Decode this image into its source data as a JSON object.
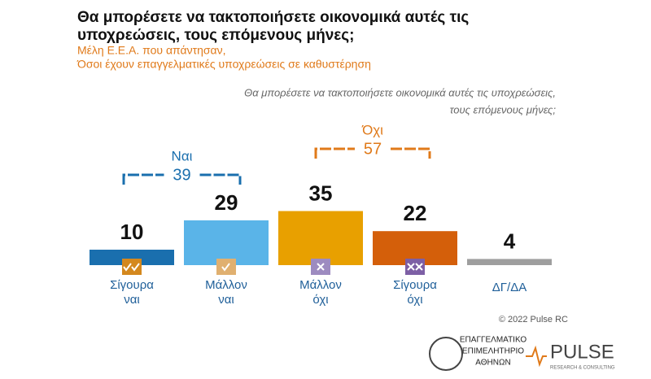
{
  "chart_data": {
    "type": "bar",
    "title": [
      "Θα μπορέσετε να τακτοποιήσετε οικονομικά αυτές τις",
      "υποχρεώσεις, τους επόμενους μήνες;"
    ],
    "subtitle": [
      "Μέλη Ε.Ε.Α. που απάντησαν,",
      "Όσοι έχουν επαγγελματικές υποχρεώσεις σε καθυστέρηση"
    ],
    "annotation": [
      "Θα μπορέσετε να τακτοποιήσετε οικονομικά αυτές τις υποχρεώσεις,",
      "τους επόμενους μήνες;"
    ],
    "categories": [
      "Σίγουρα ναι",
      "Μάλλον ναι",
      "Μάλλον όχι",
      "Σίγουρα όχι",
      "ΔΓ/ΔΑ"
    ],
    "values": [
      10,
      29,
      35,
      22,
      4
    ],
    "colors": [
      "#1a6fae",
      "#5ab4e8",
      "#e8a000",
      "#d45f0a",
      "#9e9e9e"
    ],
    "ylim": [
      0,
      40
    ],
    "groups": [
      {
        "label": "Ναι",
        "value": 39,
        "color": "#1a6fae"
      },
      {
        "label": "Όχι",
        "value": 57,
        "color": "#e07a1a"
      }
    ],
    "copyright": "© 2022 Pulse RC",
    "logos": {
      "chamber": [
        "ΕΠΑΓΓΕΛΜΑΤΙΚΟ",
        "ΕΠΙΜΕΛΗΤΗΡΙΟ",
        "ΑΘΗΝΩΝ"
      ],
      "brand": "PULSE",
      "tagline": "RESEARCH & CONSULTING"
    }
  }
}
